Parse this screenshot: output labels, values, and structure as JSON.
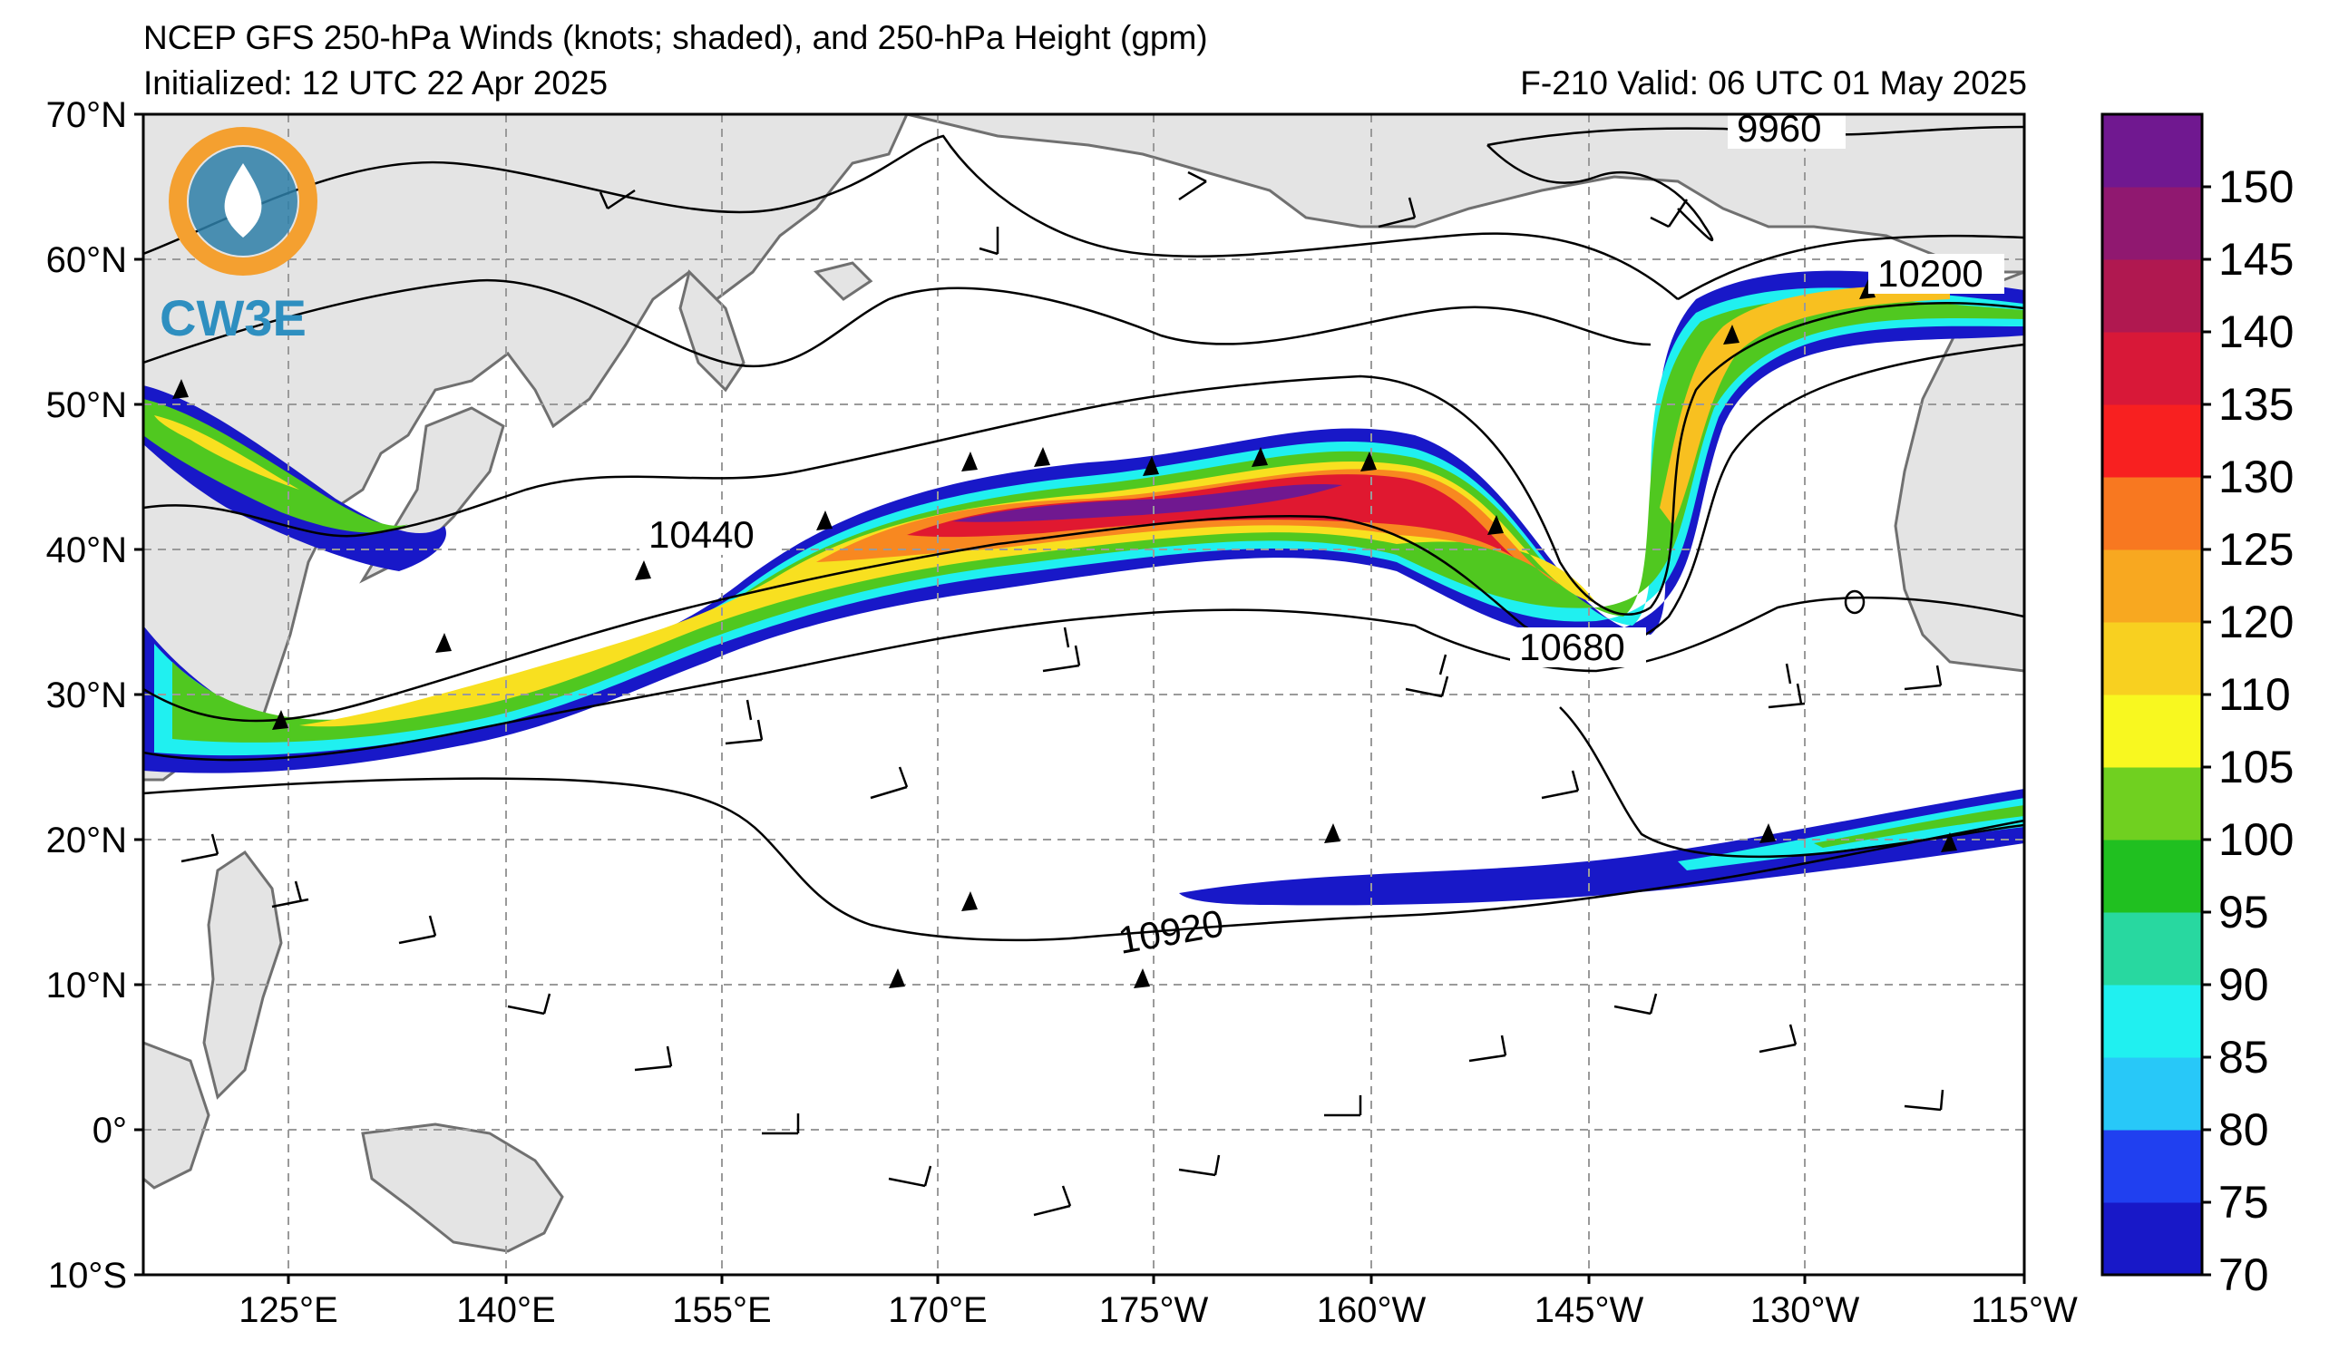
{
  "title": "NCEP GFS 250-hPa Winds (knots; shaded), and 250-hPa Height (gpm)",
  "initialized": "Initialized: 12 UTC 22 Apr 2025",
  "valid": "F-210  Valid: 06 UTC 01 May 2025",
  "logo_text": "CW3E",
  "lat_labels": [
    "70°N",
    "60°N",
    "50°N",
    "40°N",
    "30°N",
    "20°N",
    "10°N",
    "0°",
    "10°S"
  ],
  "lon_labels": [
    "125°E",
    "140°E",
    "155°E",
    "170°E",
    "175°W",
    "160°W",
    "145°W",
    "130°W",
    "115°W"
  ],
  "contour_labels": [
    "9960",
    "10200",
    "10440",
    "10680",
    "10920"
  ],
  "colorbar": {
    "ticks": [
      "70",
      "75",
      "80",
      "85",
      "90",
      "95",
      "100",
      "105",
      "110",
      "120",
      "125",
      "130",
      "135",
      "140",
      "145",
      "150"
    ],
    "colors": [
      "#1818c8",
      "#2040f0",
      "#28c8f8",
      "#20f0f0",
      "#28d8a0",
      "#20c020",
      "#70d020",
      "#f8f820",
      "#f8d020",
      "#f8a820",
      "#f87820",
      "#f82020",
      "#d81838",
      "#b01850",
      "#901870",
      "#701890"
    ]
  },
  "colors": {
    "land": "#e4e4e4",
    "coast": "#707070",
    "grid": "#9a9a9a",
    "contour": "#000000"
  }
}
